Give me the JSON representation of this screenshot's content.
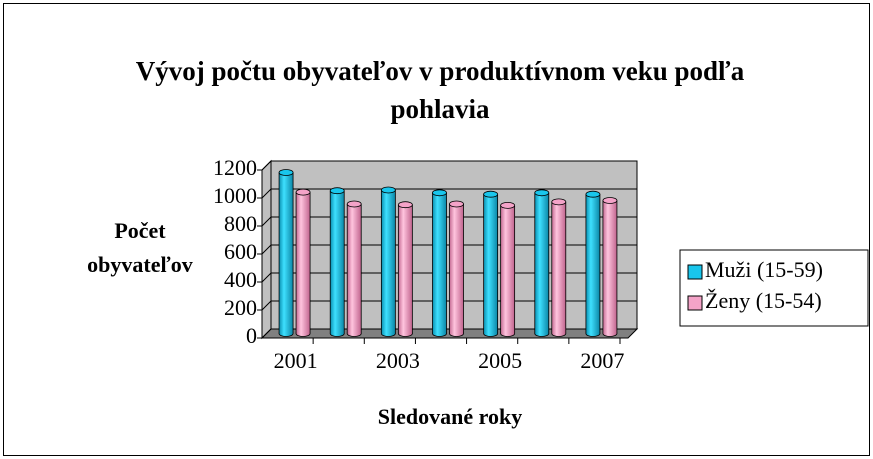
{
  "chart_data": {
    "type": "bar3d",
    "title": "Vývoj počtu obyvateľov v produktívnom veku podľa pohlavia",
    "x_label": "Sledované roky",
    "y_label": "Počet obyvateľov",
    "categories": [
      "2001",
      null,
      "2003",
      null,
      "2005",
      null,
      "2007"
    ],
    "series": [
      {
        "name": "Muži (15-59)",
        "color": "#19c6ec",
        "values": [
          1150,
          1020,
          1025,
          1005,
          995,
          1005,
          995
        ]
      },
      {
        "name": "Ženy (15-54)",
        "color": "#f4a3c8",
        "values": [
          1010,
          925,
          920,
          925,
          915,
          940,
          950
        ]
      }
    ],
    "ylim": [
      0,
      1200
    ],
    "yticks": [
      0,
      200,
      400,
      600,
      800,
      1000,
      1200
    ],
    "grid": true,
    "legend": "right"
  }
}
